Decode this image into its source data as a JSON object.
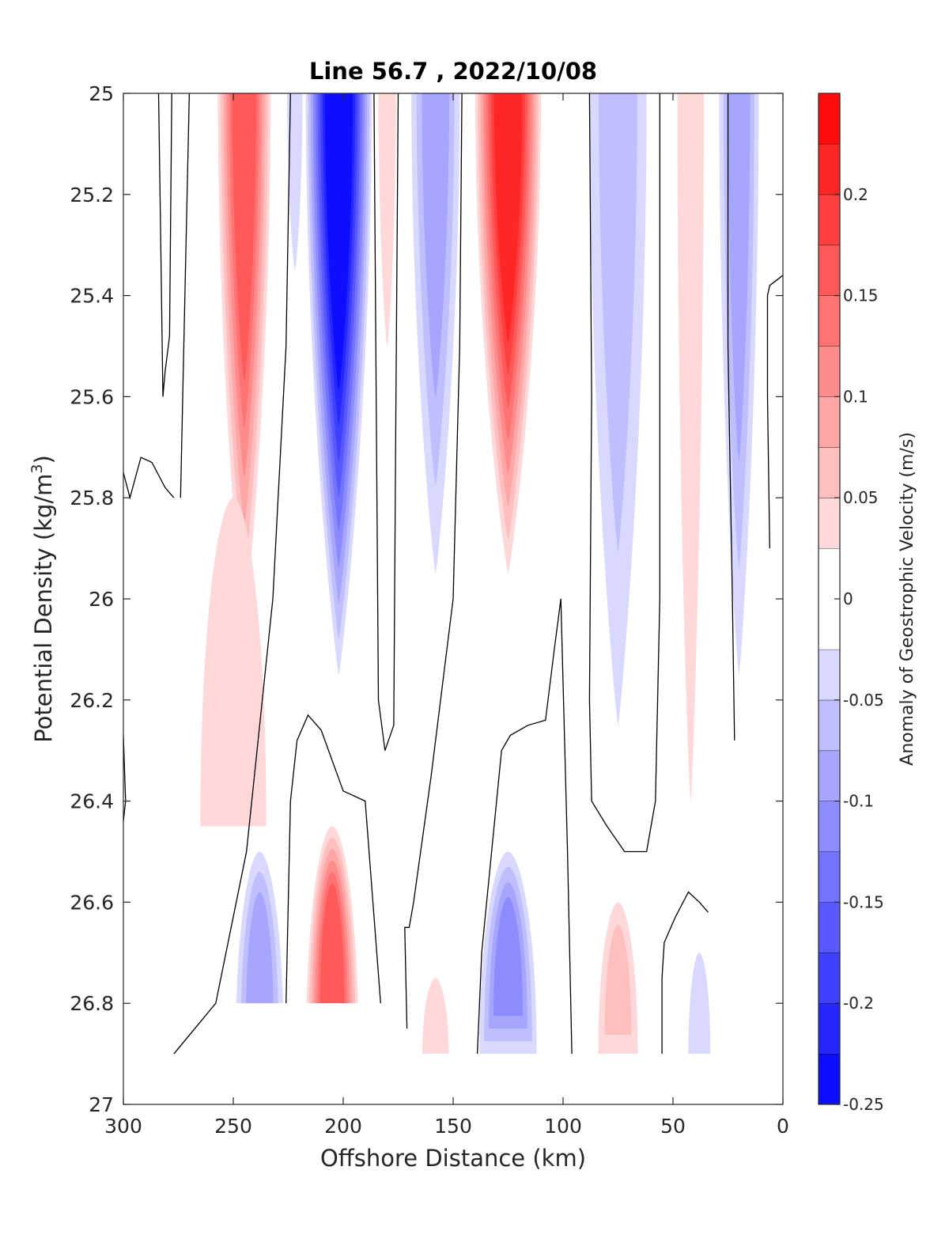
{
  "chart_data": {
    "type": "heatmap",
    "subtype": "filled-contour",
    "title": "Line 56.7 , 2022/10/08",
    "xlabel": "Offshore Distance (km)",
    "ylabel": "Potential Density (kg/m",
    "ylabel_sup": "3",
    "ylabel_end": ")",
    "colorbar_label": "Anomaly of Geostrophic Velocity (m/s)",
    "x_axis": {
      "min": 0,
      "max": 300,
      "reversed": true,
      "ticks": [
        300,
        250,
        200,
        150,
        100,
        50,
        0
      ]
    },
    "y_axis": {
      "min": 25,
      "max": 27,
      "reversed": true,
      "ticks": [
        25,
        25.2,
        25.4,
        25.6,
        25.8,
        26,
        26.2,
        26.4,
        26.6,
        26.8,
        27
      ]
    },
    "x_tick_labels": [
      "300",
      "250",
      "200",
      "150",
      "100",
      "50",
      "0"
    ],
    "y_tick_labels": [
      "25",
      "25.2",
      "25.4",
      "25.6",
      "25.8",
      "26",
      "26.2",
      "26.4",
      "26.6",
      "26.8",
      "27"
    ],
    "colorbar": {
      "min": -0.25,
      "max": 0.25,
      "levels": [
        -0.25,
        -0.225,
        -0.2,
        -0.175,
        -0.15,
        -0.125,
        -0.1,
        -0.075,
        -0.05,
        -0.025,
        0.025,
        0.05,
        0.075,
        0.1,
        0.125,
        0.15,
        0.175,
        0.2,
        0.225,
        0.25
      ],
      "tick_values": [
        0.2,
        0.15,
        0.1,
        0.05,
        0,
        -0.05,
        -0.1,
        -0.15,
        -0.2,
        -0.25
      ],
      "tick_labels": [
        "0.2",
        "0.15",
        "0.1",
        "0.05",
        "0",
        "-0.05",
        "-0.1",
        "-0.15",
        "-0.2",
        "-0.25"
      ],
      "neg_color": "#0000ff",
      "pos_color": "#ff0000",
      "zero_color": "#ffffff"
    },
    "features": [
      {
        "x": 245,
        "y_top": 25.0,
        "y_bottom": 26.05,
        "peak": 0.15,
        "width_km": 24
      },
      {
        "x": 250,
        "y_top": 25.8,
        "y_bottom": 26.45,
        "peak": 0.04,
        "width_km": 30
      },
      {
        "x": 202,
        "y_top": 25.0,
        "y_bottom": 26.15,
        "peak": -0.23,
        "width_km": 30
      },
      {
        "x": 158,
        "y_top": 25.0,
        "y_bottom": 25.95,
        "peak": -0.08,
        "width_km": 22
      },
      {
        "x": 125,
        "y_top": 25.0,
        "y_bottom": 25.95,
        "peak": 0.2,
        "width_km": 30
      },
      {
        "x": 75,
        "y_top": 25.0,
        "y_bottom": 26.25,
        "peak": -0.07,
        "width_km": 26
      },
      {
        "x": 42,
        "y_top": 25.0,
        "y_bottom": 26.4,
        "peak": 0.04,
        "width_km": 12
      },
      {
        "x": 20,
        "y_top": 25.0,
        "y_bottom": 26.15,
        "peak": -0.08,
        "width_km": 18
      },
      {
        "x": 180,
        "y_top": 25.0,
        "y_bottom": 25.5,
        "peak": 0.035,
        "width_km": 8
      },
      {
        "x": 222,
        "y_top": 25.0,
        "y_bottom": 25.35,
        "peak": -0.03,
        "width_km": 7
      },
      {
        "x": 238,
        "y_top": 26.5,
        "y_bottom": 26.9,
        "peak": -0.09,
        "width_km": 22
      },
      {
        "x": 205,
        "y_top": 26.45,
        "y_bottom": 26.9,
        "peak": 0.15,
        "width_km": 24
      },
      {
        "x": 125,
        "y_top": 26.5,
        "y_bottom": 26.9,
        "peak": -0.1,
        "width_km": 26
      },
      {
        "x": 75,
        "y_top": 26.6,
        "y_bottom": 26.9,
        "peak": 0.06,
        "width_km": 18
      },
      {
        "x": 158,
        "y_top": 26.75,
        "y_bottom": 26.9,
        "peak": 0.03,
        "width_km": 12
      },
      {
        "x": 38,
        "y_top": 26.7,
        "y_bottom": 26.9,
        "peak": -0.04,
        "width_km": 10
      }
    ],
    "zero_contours": [
      [
        [
          300,
          25.75
        ],
        [
          297,
          25.8
        ],
        [
          292,
          25.72
        ],
        [
          287,
          25.73
        ],
        [
          281,
          25.78
        ],
        [
          277,
          25.8
        ]
      ],
      [
        [
          284,
          25.0
        ],
        [
          283,
          25.3
        ],
        [
          282,
          25.6
        ],
        [
          281,
          25.55
        ],
        [
          279,
          25.48
        ],
        [
          278,
          25.0
        ]
      ],
      [
        [
          270,
          25.0
        ],
        [
          272,
          25.4
        ],
        [
          274,
          25.8
        ]
      ],
      [
        [
          300,
          26.27
        ],
        [
          299,
          26.4
        ],
        [
          300,
          26.44
        ]
      ],
      [
        [
          224,
          25.0
        ],
        [
          226,
          25.5
        ],
        [
          232,
          26.0
        ],
        [
          244,
          26.5
        ],
        [
          258,
          26.8
        ],
        [
          277,
          26.9
        ]
      ],
      [
        [
          226,
          26.8
        ],
        [
          224,
          26.4
        ],
        [
          221,
          26.28
        ],
        [
          216,
          26.23
        ],
        [
          210,
          26.26
        ],
        [
          200,
          26.38
        ],
        [
          190,
          26.4
        ],
        [
          183,
          26.8
        ]
      ],
      [
        [
          186,
          25.0
        ],
        [
          185,
          25.6
        ],
        [
          184,
          26.2
        ],
        [
          181,
          26.3
        ],
        [
          177,
          26.25
        ],
        [
          176,
          25.6
        ],
        [
          175,
          25.0
        ]
      ],
      [
        [
          171,
          26.85
        ],
        [
          172,
          26.65
        ],
        [
          170,
          26.65
        ],
        [
          168,
          26.6
        ],
        [
          160,
          26.35
        ],
        [
          150,
          26.0
        ],
        [
          147,
          25.5
        ],
        [
          146,
          25.0
        ]
      ],
      [
        [
          139,
          26.9
        ],
        [
          137,
          26.7
        ],
        [
          128,
          26.3
        ],
        [
          124,
          26.27
        ],
        [
          116,
          26.25
        ],
        [
          108,
          26.24
        ],
        [
          104,
          26.1
        ],
        [
          101,
          26.0
        ],
        [
          98,
          26.5
        ],
        [
          96,
          26.9
        ]
      ],
      [
        [
          88,
          25.0
        ],
        [
          87,
          25.6
        ],
        [
          88,
          26.2
        ],
        [
          87,
          26.4
        ],
        [
          80,
          26.45
        ],
        [
          72,
          26.5
        ],
        [
          62,
          26.5
        ],
        [
          58,
          26.4
        ],
        [
          56,
          26.0
        ],
        [
          56,
          25.0
        ]
      ],
      [
        [
          55,
          26.9
        ],
        [
          55,
          26.75
        ],
        [
          54,
          26.68
        ],
        [
          49,
          26.63
        ],
        [
          43,
          26.58
        ],
        [
          38,
          26.6
        ],
        [
          34,
          26.62
        ]
      ],
      [
        [
          25,
          25.0
        ],
        [
          25,
          25.5
        ],
        [
          23,
          26.0
        ],
        [
          22,
          26.28
        ]
      ],
      [
        [
          6,
          25.9
        ],
        [
          7,
          25.6
        ],
        [
          7,
          25.4
        ],
        [
          6,
          25.38
        ],
        [
          0,
          25.36
        ]
      ]
    ],
    "masked_region": {
      "x": [
        250,
        183
      ],
      "y": [
        26.8,
        27
      ]
    }
  }
}
